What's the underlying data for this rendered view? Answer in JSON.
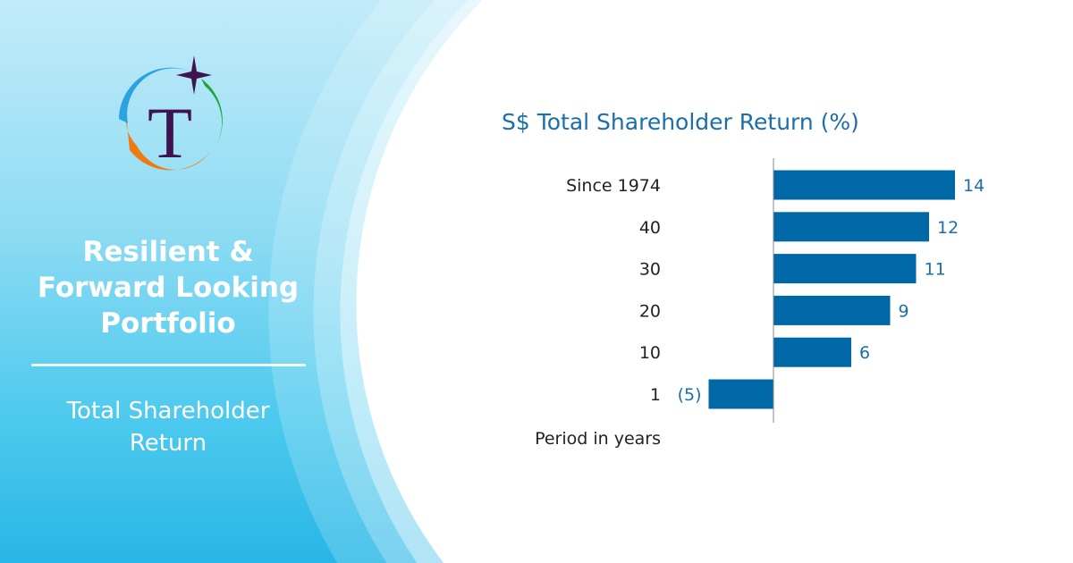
{
  "sidebar": {
    "logo_letter": "T",
    "title_lines": [
      "Resilient &",
      "Forward Looking",
      "Portfolio"
    ],
    "subtitle_lines": [
      "Total Shareholder",
      "Return"
    ]
  },
  "colors": {
    "bar": "#0068a6",
    "label": "#1a6fab",
    "logo_purple": "#3d1450",
    "logo_blue": "#2ba3e0",
    "logo_green": "#1fa33a",
    "logo_orange": "#f07a10"
  },
  "chart_data": {
    "type": "bar",
    "orientation": "horizontal",
    "title": "S$ Total Shareholder Return (%)",
    "ylabel": "Period in years",
    "categories": [
      "Since 1974",
      "40",
      "30",
      "20",
      "10",
      "1"
    ],
    "values": [
      14,
      12,
      11,
      9,
      6,
      -5
    ],
    "value_labels": [
      "14",
      "12",
      "11",
      "9",
      "6",
      "(5)"
    ],
    "grid": false
  }
}
